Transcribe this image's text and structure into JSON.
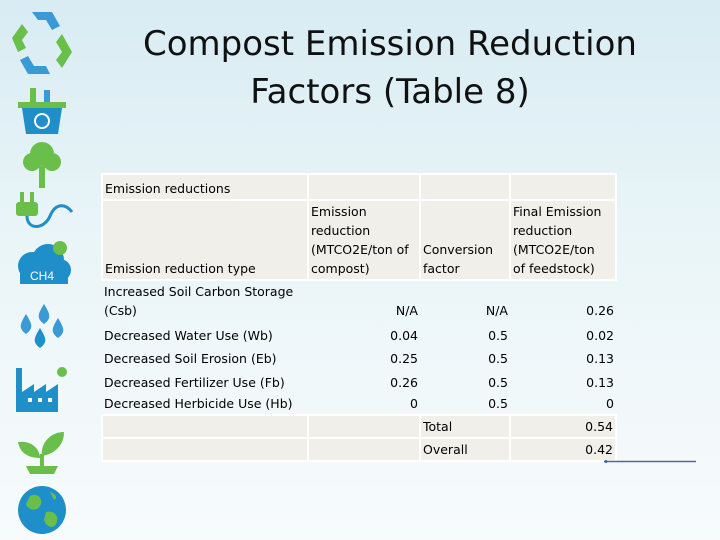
{
  "slide": {
    "title_line1": "Compost Emission Reduction",
    "title_line2": "Factors (Table 8)"
  },
  "sidebar": {
    "icons": [
      "recycle-icon",
      "recycle-bin-icon",
      "tree-icon",
      "plug-icon",
      "ch4-cloud-icon",
      "water-drops-icon",
      "factory-icon",
      "sprout-icon",
      "globe-icon"
    ],
    "ch4_label": "CH4"
  },
  "table": {
    "section_label": "Emission reductions",
    "headers": {
      "type": "Emission reduction type",
      "emission_reduction": [
        "Emission",
        "reduction",
        "(MTCO2E/ton of",
        "compost)"
      ],
      "conversion": [
        "Conversion",
        "factor"
      ],
      "final": [
        "Final Emission",
        "reduction",
        "(MTCO2E/ton",
        "of feedstock)"
      ]
    },
    "rows": [
      {
        "type": [
          "Increased Soil Carbon Storage",
          "(Csb)"
        ],
        "emission": "N/A",
        "conversion": "N/A",
        "final": "0.26"
      },
      {
        "type": [
          "Decreased Water Use (Wb)"
        ],
        "emission": "0.04",
        "conversion": "0.5",
        "final": "0.02"
      },
      {
        "type": [
          "Decreased Soil Erosion (Eb)"
        ],
        "emission": "0.25",
        "conversion": "0.5",
        "final": "0.13"
      },
      {
        "type": [
          "Decreased Fertilizer Use (Fb)"
        ],
        "emission": "0.26",
        "conversion": "0.5",
        "final": "0.13"
      },
      {
        "type": [
          "Decreased Herbicide Use (Hb)"
        ],
        "emission": "0",
        "conversion": "0.5",
        "final": "0"
      }
    ],
    "total_label": "Total",
    "total_value": "0.54",
    "overall_label": "Overall",
    "overall_value": "0.42"
  },
  "colors": {
    "icon_green": "#6abf4b",
    "icon_blue": "#1f8fc9",
    "arrow": "#3e6fa6"
  }
}
